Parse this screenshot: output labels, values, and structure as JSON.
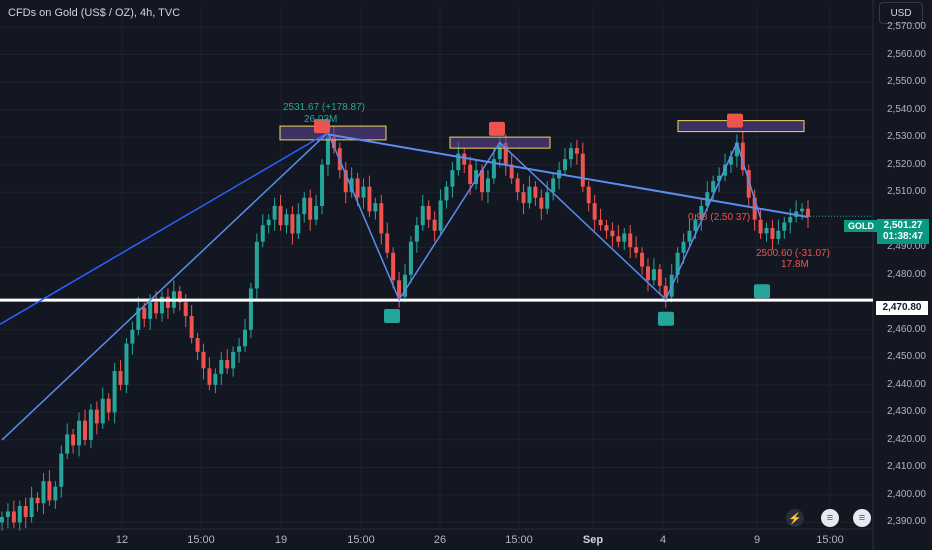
{
  "title": "CFDs on Gold (US$ / OZ), 4h, TVC",
  "currency_button": "USD",
  "symbol_tag": "GOLD",
  "last_price": "2,501.27",
  "countdown": "01:38:47",
  "support_level": "2,470.80",
  "price_ticks": [
    "2,570.00",
    "2,560.00",
    "2,550.00",
    "2,540.00",
    "2,530.00",
    "2,520.00",
    "2,510.00",
    "2,490.00",
    "2,480.00",
    "2,460.00",
    "2,450.00",
    "2,440.00",
    "2,430.00",
    "2,420.00",
    "2,410.00",
    "2,400.00",
    "2,390.00"
  ],
  "time_ticks": [
    "12",
    "15:00",
    "19",
    "15:00",
    "26",
    "15:00",
    "Sep",
    "4",
    "9",
    "15:00"
  ],
  "annotations": {
    "peak_change": "2531.67 (+178.87)",
    "peak_volume": "26.03M",
    "right_change": "0.98 (2.50 37)",
    "low_change": "2500.60 (-31.07)",
    "low_volume": "17.8M"
  },
  "colors": {
    "up": "#26a69a",
    "down": "#ef5350",
    "pattern": "#5b8def",
    "zone": "#f0d75a",
    "background": "#131722"
  },
  "icons": [
    "lightning-icon",
    "us-flag-icon",
    "us-flag-icon"
  ],
  "chart_data": {
    "type": "candlestick",
    "title": "CFDs on Gold (US$ / OZ), 4h, TVC",
    "ylim": [
      2388,
      2578
    ],
    "x_ticks": [
      "12",
      "15:00",
      "19",
      "15:00",
      "26",
      "15:00",
      "Sep",
      "4",
      "9",
      "15:00"
    ],
    "y_ticks": [
      2570,
      2560,
      2550,
      2540,
      2530,
      2520,
      2510,
      2490,
      2480,
      2460,
      2450,
      2440,
      2430,
      2420,
      2410,
      2400,
      2390
    ],
    "last_price": 2501.27,
    "horizontal_support": 2470.8,
    "resistance_zones": [
      {
        "label": "zone-1",
        "low": 2529,
        "high": 2534
      },
      {
        "label": "zone-2",
        "low": 2526,
        "high": 2530
      },
      {
        "label": "zone-3",
        "low": 2532,
        "high": 2536
      }
    ],
    "zigzag": [
      {
        "i": 0,
        "price": 2420
      },
      {
        "i": 55,
        "price": 2531.67
      },
      {
        "i": 67,
        "price": 2471
      },
      {
        "i": 84,
        "price": 2528
      },
      {
        "i": 112,
        "price": 2471
      },
      {
        "i": 124,
        "price": 2528
      },
      {
        "i": 128,
        "price": 2500.6
      }
    ],
    "neckline": [
      {
        "i": 55,
        "price": 2531
      },
      {
        "i": 136,
        "price": 2501
      }
    ],
    "close_series": [
      2392,
      2394,
      2390,
      2396,
      2392,
      2399,
      2397,
      2405,
      2398,
      2403,
      2415,
      2422,
      2418,
      2427,
      2420,
      2431,
      2426,
      2435,
      2430,
      2445,
      2440,
      2455,
      2460,
      2468,
      2464,
      2470,
      2466,
      2472,
      2468,
      2474,
      2470,
      2465,
      2457,
      2452,
      2446,
      2440,
      2444,
      2449,
      2446,
      2452,
      2454,
      2460,
      2475,
      2492,
      2498,
      2500,
      2505,
      2498,
      2502,
      2495,
      2502,
      2508,
      2500,
      2505,
      2520,
      2530,
      2526,
      2518,
      2510,
      2515,
      2508,
      2512,
      2503,
      2506,
      2495,
      2488,
      2478,
      2472,
      2480,
      2492,
      2498,
      2505,
      2500,
      2496,
      2507,
      2512,
      2518,
      2524,
      2520,
      2513,
      2518,
      2510,
      2515,
      2522,
      2528,
      2520,
      2515,
      2510,
      2506,
      2512,
      2508,
      2504,
      2510,
      2515,
      2518,
      2522,
      2526,
      2524,
      2512,
      2506,
      2500,
      2498,
      2496,
      2494,
      2492,
      2495,
      2490,
      2488,
      2483,
      2478,
      2482,
      2476,
      2472,
      2480,
      2488,
      2492,
      2496,
      2500,
      2505,
      2510,
      2514,
      2516,
      2520,
      2523,
      2528,
      2518,
      2508,
      2500,
      2495,
      2497,
      2493,
      2496,
      2499,
      2501,
      2503,
      2504,
      2501
    ]
  }
}
